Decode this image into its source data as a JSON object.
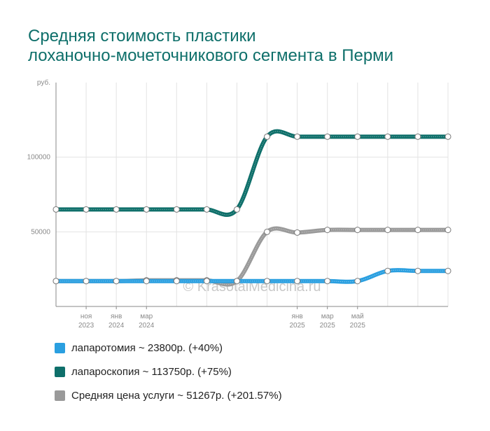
{
  "title": {
    "line1": "Средняя стоимость пластики",
    "line2": "лоханочно-мочеточникового сегмента в Перми"
  },
  "watermark": "© KrasotaiMedicina.ru",
  "chart_data": {
    "type": "line",
    "title": "Средняя стоимость пластики лоханочно-мочеточникового сегмента в Перми",
    "ylabel": "руб.",
    "ylim": [
      0,
      150000
    ],
    "y_ticks": [
      {
        "value": 50000,
        "label": "50000"
      },
      {
        "value": 100000,
        "label": "100000"
      }
    ],
    "x": [
      "2023-09",
      "2023-11",
      "2024-01",
      "2024-03",
      "2024-05",
      "2024-07",
      "2024-09",
      "2024-11",
      "2025-01",
      "2025-03",
      "2025-05",
      "2025-07",
      "2025-09",
      "2025-11"
    ],
    "x_ticks": [
      {
        "month": "ноя",
        "year": "2023"
      },
      {
        "month": "янв",
        "year": "2024"
      },
      {
        "month": "мар",
        "year": "2024"
      },
      {
        "month": "янв",
        "year": "2025"
      },
      {
        "month": "мар",
        "year": "2025"
      },
      {
        "month": "май",
        "year": "2025"
      }
    ],
    "grid": true,
    "legend_position": "bottom",
    "series": [
      {
        "name": "лапаротомия ~ 23800р. (+40%)",
        "color": "#2a9fe0",
        "values": [
          17000,
          17000,
          17000,
          17000,
          17000,
          17000,
          17000,
          17000,
          17000,
          17000,
          17000,
          23800,
          23800,
          23800
        ]
      },
      {
        "name": "лапароскопия ~ 113750р. (+75%)",
        "color": "#0e6f6a",
        "values": [
          65000,
          65000,
          65000,
          65000,
          65000,
          65000,
          65000,
          113750,
          113750,
          113750,
          113750,
          113750,
          113750,
          113750
        ]
      },
      {
        "name": "Средняя цена услуги ~ 51267р. (+201.57%)",
        "color": "#9a9a9a",
        "values": [
          17000,
          17000,
          17000,
          17500,
          17500,
          17500,
          17000,
          50000,
          49500,
          51267,
          51267,
          51267,
          51267,
          51267
        ]
      }
    ]
  }
}
